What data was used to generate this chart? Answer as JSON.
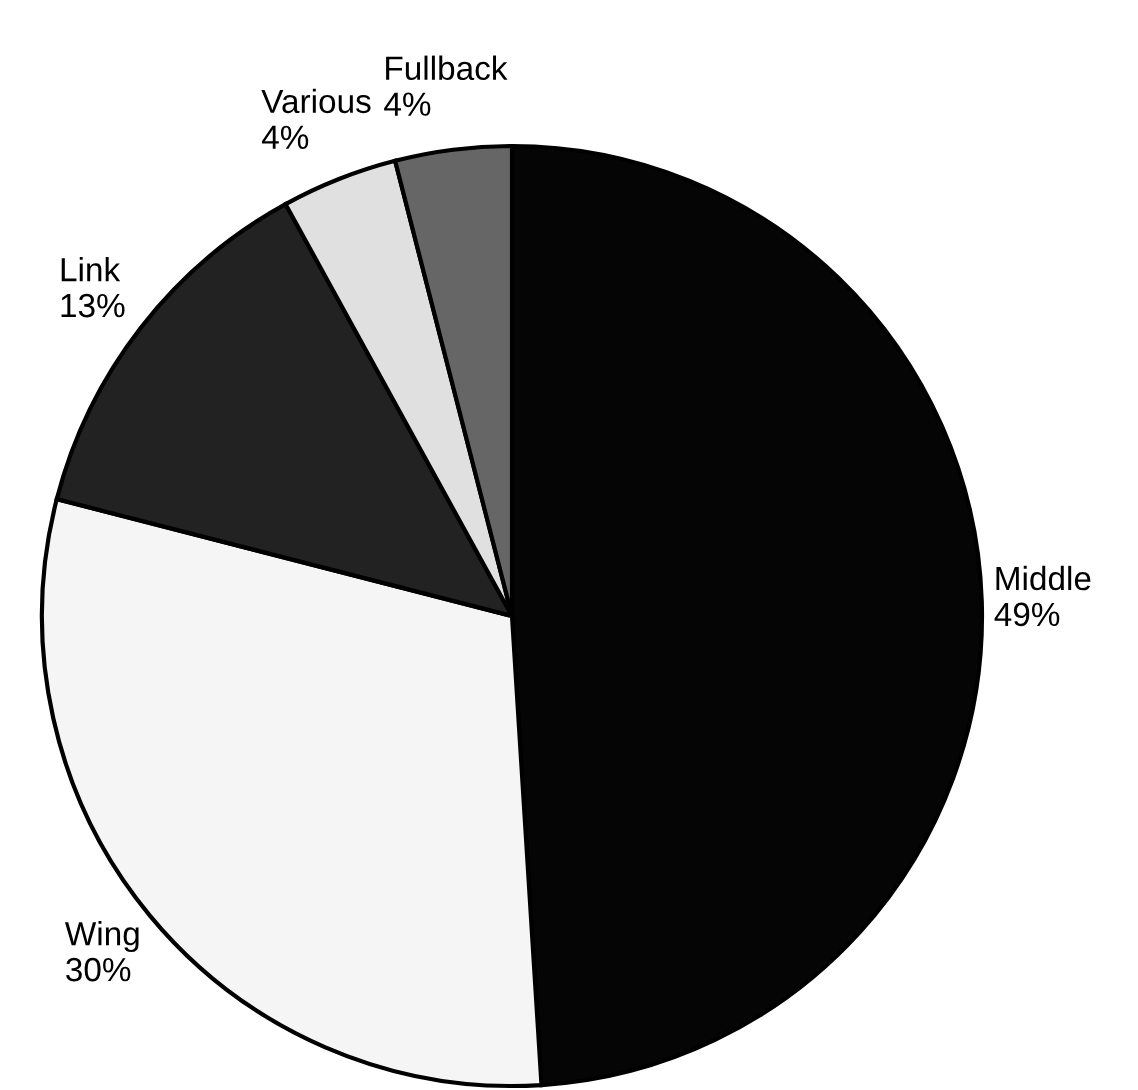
{
  "chart_data": {
    "type": "pie",
    "categories": [
      "Middle",
      "Wing",
      "Link",
      "Various",
      "Fullback"
    ],
    "values": [
      49,
      30,
      13,
      4,
      4
    ],
    "colors": [
      "#050505",
      "#f5f5f5",
      "#222222",
      "#e0e0e0",
      "#666666"
    ],
    "value_labels": [
      "49%",
      "30%",
      "13%",
      "4%",
      "4%"
    ]
  }
}
